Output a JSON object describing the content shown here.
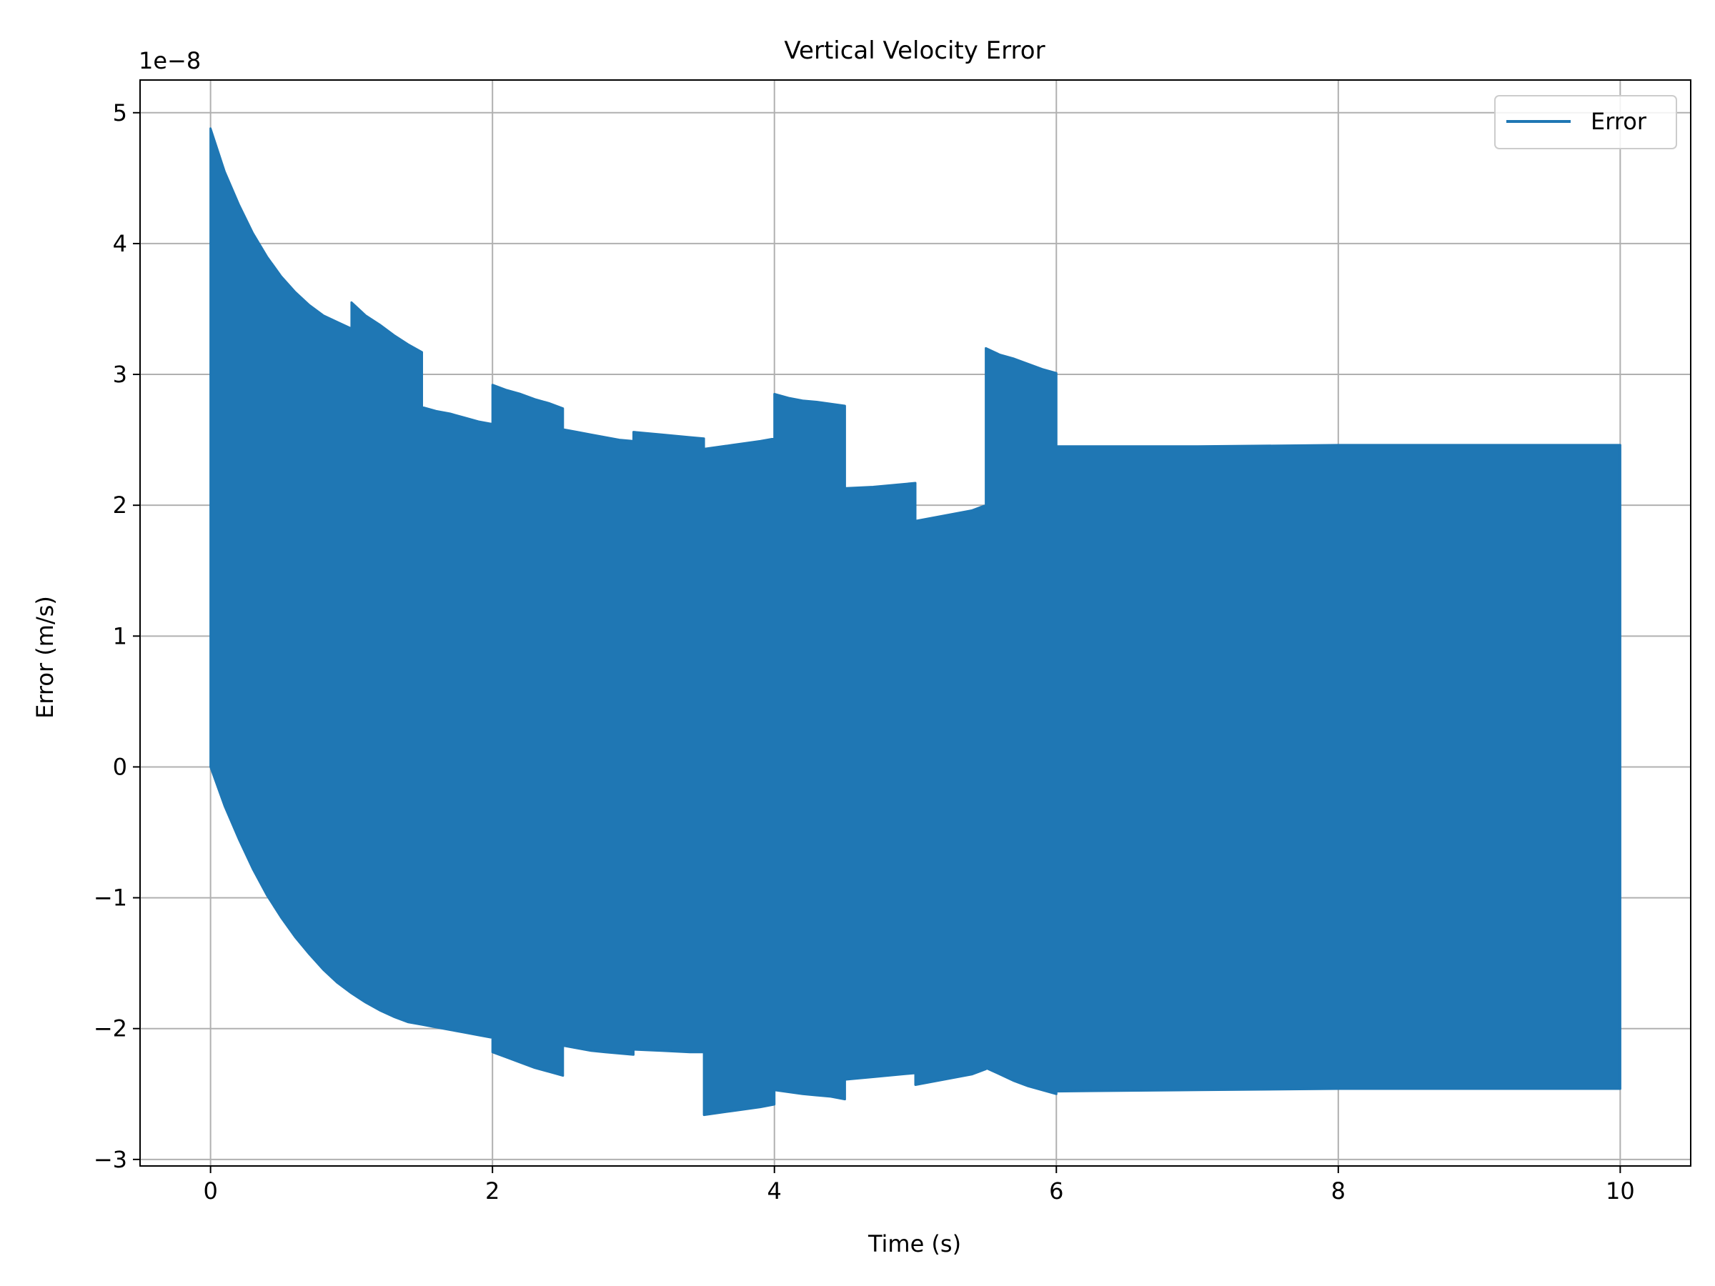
{
  "chart_data": {
    "type": "area",
    "title": "Vertical Velocity Error",
    "xlabel": "Time (s)",
    "ylabel": "Error (m/s)",
    "y_offset_text": "1e−8",
    "xlim": [
      -0.5,
      10.5
    ],
    "ylim": [
      -3.05,
      5.25
    ],
    "x_ticks": [
      0,
      2,
      4,
      6,
      8,
      10
    ],
    "y_ticks": [
      -3,
      -2,
      -1,
      0,
      1,
      2,
      3,
      4,
      5
    ],
    "x_tick_labels": [
      "0",
      "2",
      "4",
      "6",
      "8",
      "10"
    ],
    "y_tick_labels": [
      "−3",
      "−2",
      "−1",
      "0",
      "1",
      "2",
      "3",
      "4",
      "5"
    ],
    "grid": true,
    "legend": {
      "position": "top-right",
      "entries": [
        "Error"
      ]
    },
    "series": [
      {
        "name": "Error",
        "color": "#1f77b4",
        "upper_envelope": {
          "x": [
            0.0,
            0.1,
            0.2,
            0.3,
            0.4,
            0.5,
            0.6,
            0.7,
            0.8,
            0.9,
            1.0,
            1.0,
            1.1,
            1.2,
            1.3,
            1.4,
            1.5,
            1.5,
            1.6,
            1.7,
            1.8,
            1.9,
            2.0,
            2.0,
            2.1,
            2.2,
            2.3,
            2.4,
            2.5,
            2.5,
            2.6,
            2.7,
            2.8,
            2.9,
            3.0,
            3.0,
            3.2,
            3.4,
            3.5,
            3.5,
            3.7,
            3.9,
            4.0,
            4.0,
            4.1,
            4.2,
            4.3,
            4.5,
            4.5,
            4.7,
            4.9,
            5.0,
            5.0,
            5.2,
            5.4,
            5.5,
            5.5,
            5.6,
            5.7,
            5.8,
            5.9,
            6.0,
            6.0,
            7.0,
            8.0,
            9.0,
            10.0
          ],
          "y": [
            4.88,
            4.55,
            4.3,
            4.08,
            3.9,
            3.75,
            3.63,
            3.53,
            3.45,
            3.4,
            3.35,
            3.55,
            3.45,
            3.38,
            3.3,
            3.23,
            3.17,
            2.75,
            2.72,
            2.7,
            2.67,
            2.64,
            2.62,
            2.92,
            2.88,
            2.85,
            2.81,
            2.78,
            2.74,
            2.58,
            2.56,
            2.54,
            2.52,
            2.5,
            2.49,
            2.56,
            2.54,
            2.52,
            2.51,
            2.43,
            2.46,
            2.49,
            2.51,
            2.85,
            2.82,
            2.8,
            2.79,
            2.76,
            2.13,
            2.14,
            2.16,
            2.17,
            1.88,
            1.92,
            1.96,
            2.0,
            3.2,
            3.15,
            3.12,
            3.08,
            3.04,
            3.01,
            2.45,
            2.45,
            2.46,
            2.46,
            2.46
          ]
        },
        "lower_envelope": {
          "x": [
            0.0,
            0.1,
            0.2,
            0.3,
            0.4,
            0.5,
            0.6,
            0.7,
            0.8,
            0.9,
            1.0,
            1.1,
            1.2,
            1.3,
            1.4,
            1.5,
            1.6,
            1.7,
            1.8,
            1.9,
            2.0,
            2.0,
            2.1,
            2.2,
            2.3,
            2.4,
            2.5,
            2.5,
            2.6,
            2.7,
            2.8,
            2.9,
            3.0,
            3.0,
            3.2,
            3.4,
            3.5,
            3.5,
            3.7,
            3.9,
            4.0,
            4.0,
            4.2,
            4.4,
            4.5,
            4.5,
            4.7,
            4.9,
            5.0,
            5.0,
            5.2,
            5.4,
            5.5,
            5.5,
            5.6,
            5.7,
            5.8,
            5.9,
            6.0,
            6.0,
            7.0,
            8.0,
            9.0,
            10.0
          ],
          "y": [
            0.0,
            -0.3,
            -0.55,
            -0.78,
            -0.98,
            -1.15,
            -1.3,
            -1.43,
            -1.55,
            -1.65,
            -1.73,
            -1.8,
            -1.86,
            -1.91,
            -1.95,
            -1.97,
            -1.99,
            -2.01,
            -2.03,
            -2.05,
            -2.07,
            -2.18,
            -2.22,
            -2.26,
            -2.3,
            -2.33,
            -2.36,
            -2.13,
            -2.15,
            -2.17,
            -2.18,
            -2.19,
            -2.2,
            -2.16,
            -2.17,
            -2.18,
            -2.18,
            -2.66,
            -2.63,
            -2.6,
            -2.58,
            -2.47,
            -2.5,
            -2.52,
            -2.54,
            -2.39,
            -2.37,
            -2.35,
            -2.34,
            -2.43,
            -2.39,
            -2.35,
            -2.31,
            -2.3,
            -2.35,
            -2.4,
            -2.44,
            -2.47,
            -2.5,
            -2.48,
            -2.47,
            -2.46,
            -2.46,
            -2.46
          ]
        }
      }
    ]
  }
}
